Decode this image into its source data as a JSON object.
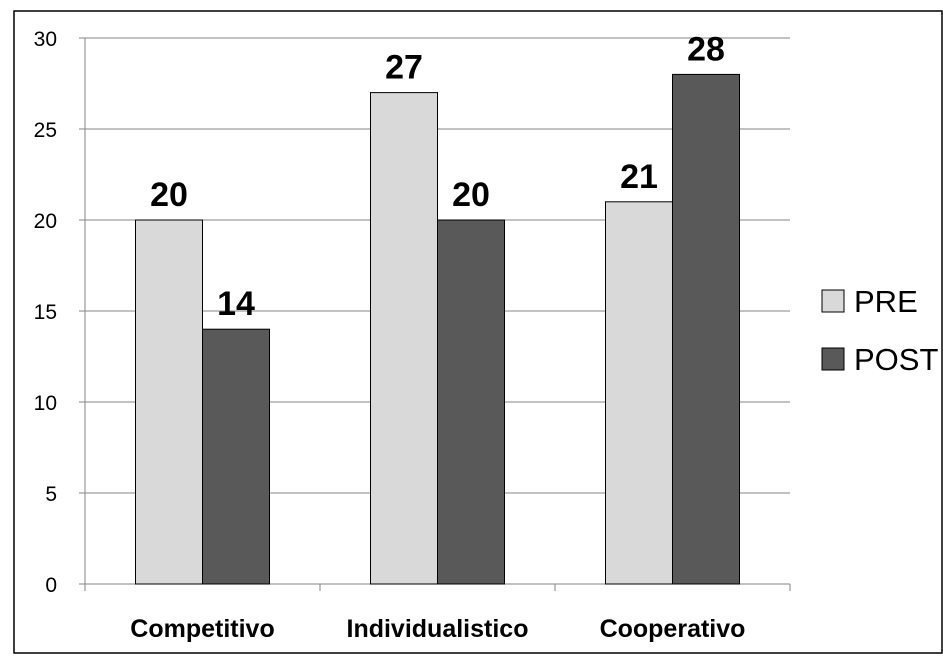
{
  "chart_data": {
    "type": "bar",
    "categories": [
      "Competitivo",
      "Individualistico",
      "Cooperativo"
    ],
    "series": [
      {
        "name": "PRE",
        "values": [
          20,
          27,
          21
        ],
        "color": "#d9d9d9"
      },
      {
        "name": "POST",
        "values": [
          14,
          20,
          28
        ],
        "color": "#595959"
      }
    ],
    "ylim": [
      0,
      30
    ],
    "yticks": [
      0,
      5,
      10,
      15,
      20,
      25,
      30
    ],
    "grid": true,
    "legend": "right",
    "data_labels": true
  }
}
